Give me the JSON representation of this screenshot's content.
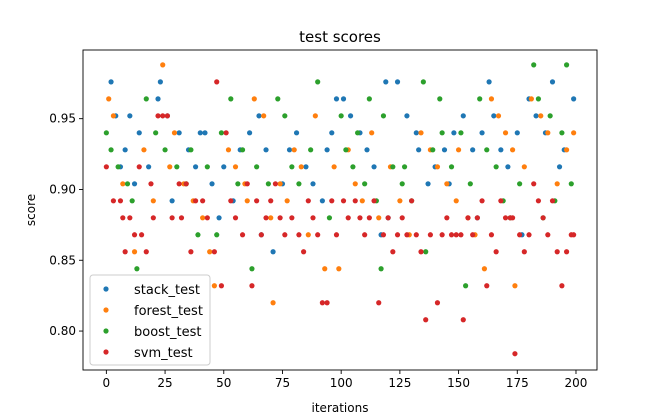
{
  "chart_data": {
    "type": "scatter",
    "title": "test scores",
    "xlabel": "iterations",
    "ylabel": "score",
    "xlim": [
      -9.95,
      208.95
    ],
    "ylim": [
      0.7725,
      0.9985
    ],
    "xticks": [
      0,
      25,
      50,
      75,
      100,
      125,
      150,
      175,
      200
    ],
    "yticks": [
      0.8,
      0.85,
      0.9,
      0.95
    ],
    "legend": "bottom-left",
    "grid": false,
    "series": [
      {
        "name": "stack_test",
        "color": "#1f77b4",
        "points": [
          [
            2,
            0.976
          ],
          [
            23,
            0.976
          ],
          [
            22,
            0.964
          ],
          [
            4,
            0.952
          ],
          [
            10,
            0.952
          ],
          [
            14,
            0.94
          ],
          [
            8,
            0.928
          ],
          [
            18,
            0.916
          ],
          [
            26,
            0.952
          ],
          [
            31,
            0.94
          ],
          [
            35,
            0.928
          ],
          [
            38,
            0.916
          ],
          [
            40,
            0.94
          ],
          [
            45,
            0.904
          ],
          [
            50,
            0.916
          ],
          [
            54,
            0.892
          ],
          [
            57,
            0.928
          ],
          [
            61,
            0.94
          ],
          [
            65,
            0.952
          ],
          [
            68,
            0.928
          ],
          [
            71,
            0.856
          ],
          [
            75,
            0.904
          ],
          [
            78,
            0.928
          ],
          [
            81,
            0.94
          ],
          [
            85,
            0.916
          ],
          [
            88,
            0.904
          ],
          [
            94,
            0.928
          ],
          [
            98,
            0.964
          ],
          [
            101,
            0.964
          ],
          [
            104,
            0.952
          ],
          [
            108,
            0.94
          ],
          [
            111,
            0.928
          ],
          [
            114,
            0.916
          ],
          [
            119,
            0.976
          ],
          [
            124,
            0.976
          ],
          [
            128,
            0.952
          ],
          [
            132,
            0.94
          ],
          [
            137,
            0.904
          ],
          [
            140,
            0.916
          ],
          [
            144,
            0.928
          ],
          [
            148,
            0.94
          ],
          [
            152,
            0.952
          ],
          [
            156,
            0.928
          ],
          [
            160,
            0.94
          ],
          [
            163,
            0.976
          ],
          [
            165,
            0.952
          ],
          [
            168,
            0.928
          ],
          [
            171,
            0.916
          ],
          [
            175,
            0.94
          ],
          [
            180,
            0.964
          ],
          [
            183,
            0.952
          ],
          [
            187,
            0.94
          ],
          [
            190,
            0.976
          ],
          [
            195,
            0.928
          ],
          [
            199,
            0.964
          ],
          [
            12,
            0.904
          ],
          [
            28,
            0.892
          ],
          [
            48,
            0.88
          ],
          [
            92,
            0.892
          ],
          [
            117,
            0.868
          ],
          [
            133,
            0.928
          ],
          [
            158,
            0.88
          ],
          [
            177,
            0.868
          ],
          [
            193,
            0.916
          ],
          [
            6,
            0.916
          ],
          [
            42,
            0.94
          ],
          [
            66,
            0.868
          ],
          [
            96,
            0.94
          ],
          [
            120,
            0.88
          ],
          [
            146,
            0.904
          ]
        ]
      },
      {
        "name": "forest_test",
        "color": "#ff7f0e",
        "points": [
          [
            24,
            0.988
          ],
          [
            1,
            0.964
          ],
          [
            3,
            0.952
          ],
          [
            7,
            0.904
          ],
          [
            12,
            0.856
          ],
          [
            16,
            0.928
          ],
          [
            20,
            0.892
          ],
          [
            27,
            0.916
          ],
          [
            29,
            0.94
          ],
          [
            33,
            0.904
          ],
          [
            37,
            0.892
          ],
          [
            41,
            0.88
          ],
          [
            44,
            0.856
          ],
          [
            46,
            0.832
          ],
          [
            52,
            0.928
          ],
          [
            55,
            0.916
          ],
          [
            59,
            0.904
          ],
          [
            63,
            0.964
          ],
          [
            67,
            0.952
          ],
          [
            70,
            0.88
          ],
          [
            71,
            0.82
          ],
          [
            74,
            0.904
          ],
          [
            77,
            0.892
          ],
          [
            80,
            0.928
          ],
          [
            83,
            0.916
          ],
          [
            86,
            0.868
          ],
          [
            89,
            0.952
          ],
          [
            93,
            0.844
          ],
          [
            97,
            0.916
          ],
          [
            99,
            0.844
          ],
          [
            103,
            0.928
          ],
          [
            106,
            0.904
          ],
          [
            109,
            0.892
          ],
          [
            113,
            0.94
          ],
          [
            116,
            0.88
          ],
          [
            121,
            0.916
          ],
          [
            125,
            0.892
          ],
          [
            129,
            0.868
          ],
          [
            134,
            0.94
          ],
          [
            138,
            0.928
          ],
          [
            141,
            0.916
          ],
          [
            145,
            0.904
          ],
          [
            149,
            0.892
          ],
          [
            154,
            0.88
          ],
          [
            157,
            0.868
          ],
          [
            161,
            0.844
          ],
          [
            164,
            0.964
          ],
          [
            167,
            0.952
          ],
          [
            170,
            0.94
          ],
          [
            173,
            0.928
          ],
          [
            174,
            0.832
          ],
          [
            178,
            0.916
          ],
          [
            181,
            0.964
          ],
          [
            185,
            0.952
          ],
          [
            188,
            0.94
          ],
          [
            192,
            0.904
          ],
          [
            196,
            0.928
          ],
          [
            199,
            0.94
          ],
          [
            150,
            0.928
          ],
          [
            60,
            0.892
          ]
        ]
      },
      {
        "name": "boost_test",
        "color": "#2ca02c",
        "points": [
          [
            0,
            0.94
          ],
          [
            2,
            0.928
          ],
          [
            5,
            0.916
          ],
          [
            9,
            0.904
          ],
          [
            11,
            0.892
          ],
          [
            13,
            0.844
          ],
          [
            17,
            0.964
          ],
          [
            21,
            0.94
          ],
          [
            25,
            0.928
          ],
          [
            30,
            0.916
          ],
          [
            34,
            0.904
          ],
          [
            36,
            0.928
          ],
          [
            39,
            0.868
          ],
          [
            43,
            0.916
          ],
          [
            47,
            0.868
          ],
          [
            49,
            0.94
          ],
          [
            53,
            0.964
          ],
          [
            56,
            0.904
          ],
          [
            58,
            0.928
          ],
          [
            62,
            0.844
          ],
          [
            64,
            0.916
          ],
          [
            69,
            0.904
          ],
          [
            73,
            0.964
          ],
          [
            76,
            0.952
          ],
          [
            79,
            0.916
          ],
          [
            82,
            0.904
          ],
          [
            87,
            0.928
          ],
          [
            90,
            0.976
          ],
          [
            95,
            0.88
          ],
          [
            100,
            0.952
          ],
          [
            102,
            0.928
          ],
          [
            105,
            0.916
          ],
          [
            107,
            0.94
          ],
          [
            110,
            0.904
          ],
          [
            112,
            0.964
          ],
          [
            115,
            0.892
          ],
          [
            117,
            0.844
          ],
          [
            118,
            0.952
          ],
          [
            122,
            0.916
          ],
          [
            126,
            0.904
          ],
          [
            130,
            0.892
          ],
          [
            135,
            0.976
          ],
          [
            136,
            0.856
          ],
          [
            139,
            0.928
          ],
          [
            142,
            0.964
          ],
          [
            147,
            0.916
          ],
          [
            151,
            0.94
          ],
          [
            153,
            0.832
          ],
          [
            155,
            0.904
          ],
          [
            159,
            0.964
          ],
          [
            162,
            0.928
          ],
          [
            166,
            0.916
          ],
          [
            169,
            0.892
          ],
          [
            172,
            0.88
          ],
          [
            176,
            0.904
          ],
          [
            182,
            0.988
          ],
          [
            184,
            0.964
          ],
          [
            189,
            0.952
          ],
          [
            194,
            0.94
          ],
          [
            196,
            0.988
          ],
          [
            198,
            0.904
          ],
          [
            186,
            0.88
          ],
          [
            191,
            0.892
          ],
          [
            143,
            0.94
          ],
          [
            127,
            0.916
          ]
        ]
      },
      {
        "name": "svm_test",
        "color": "#d62728",
        "points": [
          [
            0,
            0.916
          ],
          [
            3,
            0.892
          ],
          [
            6,
            0.892
          ],
          [
            7,
            0.88
          ],
          [
            8,
            0.856
          ],
          [
            10,
            0.88
          ],
          [
            12,
            0.868
          ],
          [
            15,
            0.868
          ],
          [
            17,
            0.856
          ],
          [
            19,
            0.904
          ],
          [
            20,
            0.88
          ],
          [
            24,
            0.952
          ],
          [
            26,
            0.952
          ],
          [
            28,
            0.88
          ],
          [
            31,
            0.904
          ],
          [
            32,
            0.88
          ],
          [
            34,
            0.904
          ],
          [
            36,
            0.856
          ],
          [
            38,
            0.892
          ],
          [
            41,
            0.892
          ],
          [
            43,
            0.88
          ],
          [
            46,
            0.856
          ],
          [
            47,
            0.976
          ],
          [
            49,
            0.832
          ],
          [
            51,
            0.94
          ],
          [
            53,
            0.892
          ],
          [
            55,
            0.88
          ],
          [
            58,
            0.868
          ],
          [
            60,
            0.904
          ],
          [
            62,
            0.832
          ],
          [
            64,
            0.892
          ],
          [
            66,
            0.868
          ],
          [
            68,
            0.88
          ],
          [
            70,
            0.892
          ],
          [
            72,
            0.904
          ],
          [
            74,
            0.88
          ],
          [
            76,
            0.868
          ],
          [
            79,
            0.88
          ],
          [
            82,
            0.868
          ],
          [
            84,
            0.856
          ],
          [
            86,
            0.892
          ],
          [
            88,
            0.88
          ],
          [
            90,
            0.868
          ],
          [
            92,
            0.82
          ],
          [
            94,
            0.82
          ],
          [
            96,
            0.892
          ],
          [
            98,
            0.868
          ],
          [
            101,
            0.892
          ],
          [
            103,
            0.88
          ],
          [
            106,
            0.892
          ],
          [
            108,
            0.88
          ],
          [
            110,
            0.868
          ],
          [
            112,
            0.88
          ],
          [
            114,
            0.892
          ],
          [
            116,
            0.82
          ],
          [
            118,
            0.868
          ],
          [
            120,
            0.88
          ],
          [
            122,
            0.856
          ],
          [
            124,
            0.868
          ],
          [
            126,
            0.88
          ],
          [
            128,
            0.868
          ],
          [
            130,
            0.892
          ],
          [
            132,
            0.868
          ],
          [
            134,
            0.856
          ],
          [
            136,
            0.808
          ],
          [
            138,
            0.868
          ],
          [
            141,
            0.82
          ],
          [
            143,
            0.868
          ],
          [
            145,
            0.88
          ],
          [
            147,
            0.868
          ],
          [
            149,
            0.868
          ],
          [
            151,
            0.868
          ],
          [
            152,
            0.808
          ],
          [
            154,
            0.88
          ],
          [
            156,
            0.868
          ],
          [
            158,
            0.88
          ],
          [
            160,
            0.892
          ],
          [
            162,
            0.832
          ],
          [
            164,
            0.868
          ],
          [
            166,
            0.856
          ],
          [
            168,
            0.892
          ],
          [
            170,
            0.88
          ],
          [
            172,
            0.88
          ],
          [
            173,
            0.88
          ],
          [
            174,
            0.784
          ],
          [
            176,
            0.868
          ],
          [
            178,
            0.856
          ],
          [
            180,
            0.868
          ],
          [
            182,
            0.904
          ],
          [
            184,
            0.892
          ],
          [
            186,
            0.88
          ],
          [
            188,
            0.868
          ],
          [
            190,
            0.892
          ],
          [
            192,
            0.856
          ],
          [
            194,
            0.832
          ],
          [
            196,
            0.856
          ],
          [
            198,
            0.868
          ],
          [
            199,
            0.868
          ],
          [
            14,
            0.916
          ],
          [
            22,
            0.952
          ]
        ]
      }
    ]
  }
}
